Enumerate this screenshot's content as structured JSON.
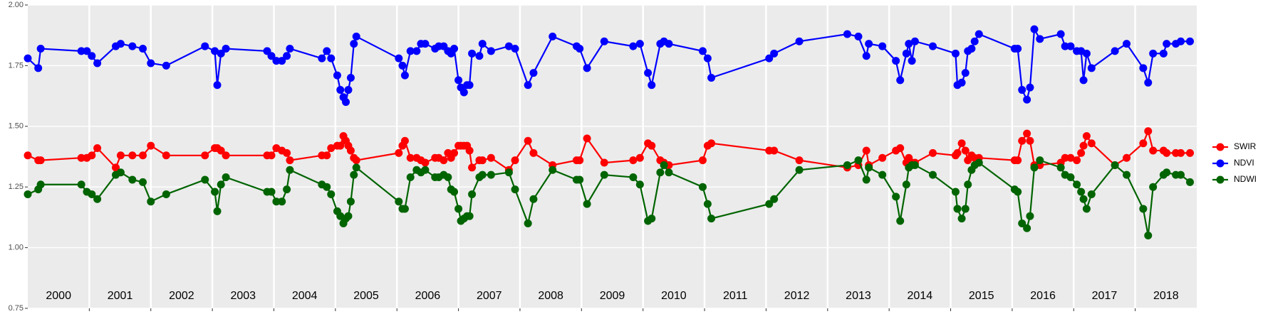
{
  "chart_data": {
    "type": "line",
    "x": [
      2000.0,
      2000.17,
      2000.21,
      2000.87,
      2000.96,
      2001.04,
      2001.13,
      2001.43,
      2001.51,
      2001.7,
      2001.87,
      2002.0,
      2002.25,
      2002.88,
      2003.04,
      2003.08,
      2003.14,
      2003.22,
      2003.89,
      2003.96,
      2004.04,
      2004.13,
      2004.21,
      2004.26,
      2004.78,
      2004.86,
      2004.93,
      2005.03,
      2005.08,
      2005.13,
      2005.17,
      2005.21,
      2005.25,
      2005.3,
      2005.34,
      2006.03,
      2006.09,
      2006.13,
      2006.22,
      2006.32,
      2006.39,
      2006.46,
      2006.62,
      2006.68,
      2006.76,
      2006.83,
      2006.88,
      2006.93,
      2007.0,
      2007.04,
      2007.09,
      2007.14,
      2007.18,
      2007.22,
      2007.34,
      2007.39,
      2007.53,
      2007.82,
      2007.92,
      2008.13,
      2008.22,
      2008.53,
      2008.92,
      2008.97,
      2009.09,
      2009.37,
      2009.84,
      2009.95,
      2010.08,
      2010.14,
      2010.28,
      2010.34,
      2010.42,
      2010.97,
      2011.05,
      2011.11,
      2012.05,
      2012.13,
      2012.54,
      2013.32,
      2013.5,
      2013.63,
      2013.67,
      2013.89,
      2014.11,
      2014.18,
      2014.28,
      2014.32,
      2014.37,
      2014.42,
      2014.71,
      2015.08,
      2015.11,
      2015.18,
      2015.24,
      2015.28,
      2015.34,
      2015.39,
      2015.46,
      2016.04,
      2016.09,
      2016.16,
      2016.24,
      2016.29,
      2016.36,
      2016.45,
      2016.79,
      2016.86,
      2016.95,
      2017.05,
      2017.12,
      2017.16,
      2017.21,
      2017.29,
      2017.67,
      2017.86,
      2018.13,
      2018.21,
      2018.29,
      2018.46,
      2018.51,
      2018.66,
      2018.74,
      2018.89
    ],
    "series": [
      {
        "name": "SWIR",
        "color": "#ff0000",
        "values": [
          1.38,
          1.36,
          1.36,
          1.37,
          1.37,
          1.38,
          1.41,
          1.33,
          1.38,
          1.38,
          1.38,
          1.42,
          1.38,
          1.38,
          1.41,
          1.41,
          1.4,
          1.38,
          1.38,
          1.38,
          1.41,
          1.4,
          1.39,
          1.36,
          1.38,
          1.38,
          1.41,
          1.42,
          1.42,
          1.46,
          1.44,
          1.42,
          1.4,
          1.37,
          1.36,
          1.39,
          1.42,
          1.44,
          1.37,
          1.37,
          1.36,
          1.35,
          1.37,
          1.37,
          1.36,
          1.39,
          1.37,
          1.39,
          1.42,
          1.42,
          1.42,
          1.42,
          1.4,
          1.33,
          1.36,
          1.36,
          1.37,
          1.32,
          1.36,
          1.44,
          1.39,
          1.34,
          1.36,
          1.36,
          1.45,
          1.35,
          1.36,
          1.37,
          1.43,
          1.42,
          1.36,
          1.35,
          1.34,
          1.36,
          1.42,
          1.43,
          1.4,
          1.4,
          1.36,
          1.33,
          1.34,
          1.4,
          1.34,
          1.37,
          1.4,
          1.41,
          1.35,
          1.37,
          1.35,
          1.35,
          1.39,
          1.38,
          1.39,
          1.43,
          1.4,
          1.36,
          1.38,
          1.37,
          1.37,
          1.36,
          1.36,
          1.44,
          1.47,
          1.44,
          1.34,
          1.34,
          1.35,
          1.37,
          1.37,
          1.36,
          1.39,
          1.42,
          1.46,
          1.43,
          1.34,
          1.37,
          1.43,
          1.48,
          1.4,
          1.4,
          1.39,
          1.39,
          1.39,
          1.39
        ]
      },
      {
        "name": "NDVI",
        "color": "#0000ff",
        "values": [
          1.78,
          1.74,
          1.82,
          1.81,
          1.81,
          1.79,
          1.76,
          1.83,
          1.84,
          1.83,
          1.82,
          1.76,
          1.75,
          1.83,
          1.81,
          1.67,
          1.8,
          1.82,
          1.81,
          1.79,
          1.77,
          1.77,
          1.79,
          1.82,
          1.78,
          1.81,
          1.78,
          1.71,
          1.65,
          1.62,
          1.6,
          1.65,
          1.7,
          1.84,
          1.87,
          1.78,
          1.75,
          1.71,
          1.81,
          1.81,
          1.84,
          1.84,
          1.82,
          1.83,
          1.83,
          1.81,
          1.8,
          1.82,
          1.69,
          1.66,
          1.64,
          1.67,
          1.67,
          1.8,
          1.79,
          1.84,
          1.81,
          1.83,
          1.82,
          1.67,
          1.72,
          1.87,
          1.83,
          1.82,
          1.74,
          1.85,
          1.83,
          1.84,
          1.72,
          1.67,
          1.84,
          1.85,
          1.84,
          1.81,
          1.78,
          1.7,
          1.78,
          1.8,
          1.85,
          1.88,
          1.87,
          1.79,
          1.84,
          1.83,
          1.77,
          1.69,
          1.8,
          1.84,
          1.77,
          1.85,
          1.83,
          1.8,
          1.67,
          1.68,
          1.72,
          1.81,
          1.82,
          1.85,
          1.88,
          1.82,
          1.82,
          1.65,
          1.61,
          1.66,
          1.9,
          1.86,
          1.88,
          1.83,
          1.83,
          1.81,
          1.81,
          1.69,
          1.8,
          1.74,
          1.81,
          1.84,
          1.74,
          1.68,
          1.8,
          1.8,
          1.84,
          1.84,
          1.85,
          1.85
        ]
      },
      {
        "name": "NDWI",
        "color": "#006400",
        "values": [
          1.22,
          1.24,
          1.26,
          1.26,
          1.23,
          1.22,
          1.2,
          1.3,
          1.31,
          1.28,
          1.27,
          1.19,
          1.22,
          1.28,
          1.23,
          1.15,
          1.26,
          1.29,
          1.23,
          1.23,
          1.19,
          1.19,
          1.24,
          1.32,
          1.26,
          1.25,
          1.22,
          1.15,
          1.13,
          1.1,
          1.12,
          1.13,
          1.19,
          1.3,
          1.33,
          1.19,
          1.16,
          1.16,
          1.29,
          1.32,
          1.31,
          1.32,
          1.29,
          1.29,
          1.3,
          1.29,
          1.24,
          1.23,
          1.16,
          1.11,
          1.12,
          1.13,
          1.13,
          1.22,
          1.29,
          1.3,
          1.3,
          1.31,
          1.24,
          1.1,
          1.2,
          1.32,
          1.28,
          1.28,
          1.18,
          1.3,
          1.29,
          1.26,
          1.11,
          1.12,
          1.31,
          1.34,
          1.31,
          1.25,
          1.18,
          1.12,
          1.18,
          1.2,
          1.32,
          1.34,
          1.36,
          1.28,
          1.33,
          1.3,
          1.21,
          1.11,
          1.26,
          1.33,
          1.34,
          1.34,
          1.3,
          1.23,
          1.16,
          1.12,
          1.16,
          1.26,
          1.32,
          1.34,
          1.35,
          1.24,
          1.23,
          1.1,
          1.08,
          1.13,
          1.33,
          1.36,
          1.33,
          1.3,
          1.29,
          1.26,
          1.23,
          1.2,
          1.16,
          1.22,
          1.34,
          1.3,
          1.16,
          1.05,
          1.25,
          1.3,
          1.31,
          1.3,
          1.3,
          1.27
        ]
      }
    ],
    "xlim": [
      2000,
      2019
    ],
    "xticks": [
      2001,
      2002,
      2003,
      2004,
      2005,
      2006,
      2007,
      2008,
      2009,
      2010,
      2011,
      2012,
      2013,
      2014,
      2015,
      2016,
      2017,
      2018
    ],
    "year_labels": [
      {
        "value": 2000.5,
        "label": "2000"
      },
      {
        "value": 2001.5,
        "label": "2001"
      },
      {
        "value": 2002.5,
        "label": "2002"
      },
      {
        "value": 2003.5,
        "label": "2003"
      },
      {
        "value": 2004.5,
        "label": "2004"
      },
      {
        "value": 2005.5,
        "label": "2005"
      },
      {
        "value": 2006.5,
        "label": "2006"
      },
      {
        "value": 2007.5,
        "label": "2007"
      },
      {
        "value": 2008.5,
        "label": "2008"
      },
      {
        "value": 2009.5,
        "label": "2009"
      },
      {
        "value": 2010.5,
        "label": "2010"
      },
      {
        "value": 2011.5,
        "label": "2011"
      },
      {
        "value": 2012.5,
        "label": "2012"
      },
      {
        "value": 2013.5,
        "label": "2013"
      },
      {
        "value": 2014.5,
        "label": "2014"
      },
      {
        "value": 2015.5,
        "label": "2015"
      },
      {
        "value": 2016.5,
        "label": "2016"
      },
      {
        "value": 2017.5,
        "label": "2017"
      },
      {
        "value": 2018.5,
        "label": "2018"
      }
    ],
    "ylim": [
      0.75,
      2.0
    ],
    "yticks": [
      {
        "value": 0.75,
        "label": "0.75"
      },
      {
        "value": 1,
        "label": "1.00"
      },
      {
        "value": 1.25,
        "label": "1.25"
      },
      {
        "value": 1.5,
        "label": "1.50"
      },
      {
        "value": 1.75,
        "label": "1.75"
      },
      {
        "value": 2,
        "label": "2.00"
      }
    ],
    "grid": true,
    "legend": "right"
  }
}
